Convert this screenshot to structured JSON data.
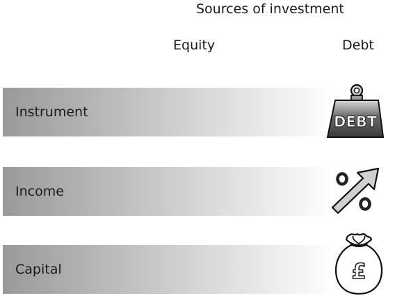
{
  "header": {
    "title": "Sources of investment",
    "columns": [
      "Equity",
      "Debt"
    ]
  },
  "rows": [
    {
      "label": "Instrument",
      "icon": "debt-weight-icon",
      "icon_text": "DEBT"
    },
    {
      "label": "Income",
      "icon": "percent-arrow-icon"
    },
    {
      "label": "Capital",
      "icon": "money-bag-icon",
      "icon_text": "£"
    }
  ],
  "colors": {
    "band_dark": "#9a9a9a",
    "band_light": "#ffffff",
    "icon_dark": "#3a3a3a",
    "icon_light": "#d0d0d0"
  }
}
